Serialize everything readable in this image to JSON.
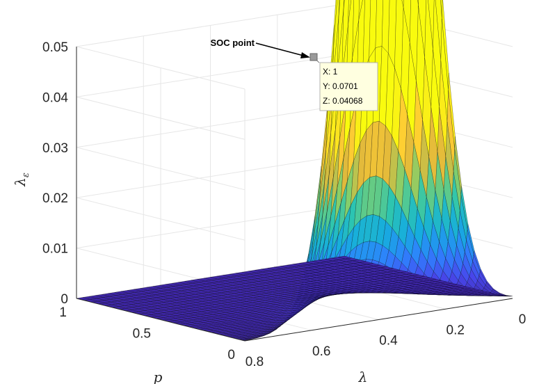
{
  "chart_data": {
    "type": "surface",
    "title": "",
    "xlabel": "λ",
    "ylabel": "p",
    "zlabel": "λ",
    "zlabel_subscript": "ε",
    "x_ticks": [
      "0",
      "0.2",
      "0.4",
      "0.6",
      "0.8"
    ],
    "y_ticks": [
      "0",
      "0.5",
      "1"
    ],
    "z_ticks": [
      "0",
      "0.01",
      "0.02",
      "0.03",
      "0.04",
      "0.05"
    ],
    "xlim": [
      0,
      0.85
    ],
    "ylim": [
      0,
      1
    ],
    "zlim": [
      0,
      0.05
    ],
    "grid": true,
    "colormap": "parula",
    "annotation": {
      "text": "SOC point"
    },
    "datatip": {
      "x_text": "X: 1",
      "y_text": "Y: 0.0701",
      "z_text": "Z: 0.04068",
      "x": 1,
      "y": 0.0701,
      "z": 0.04068
    }
  }
}
